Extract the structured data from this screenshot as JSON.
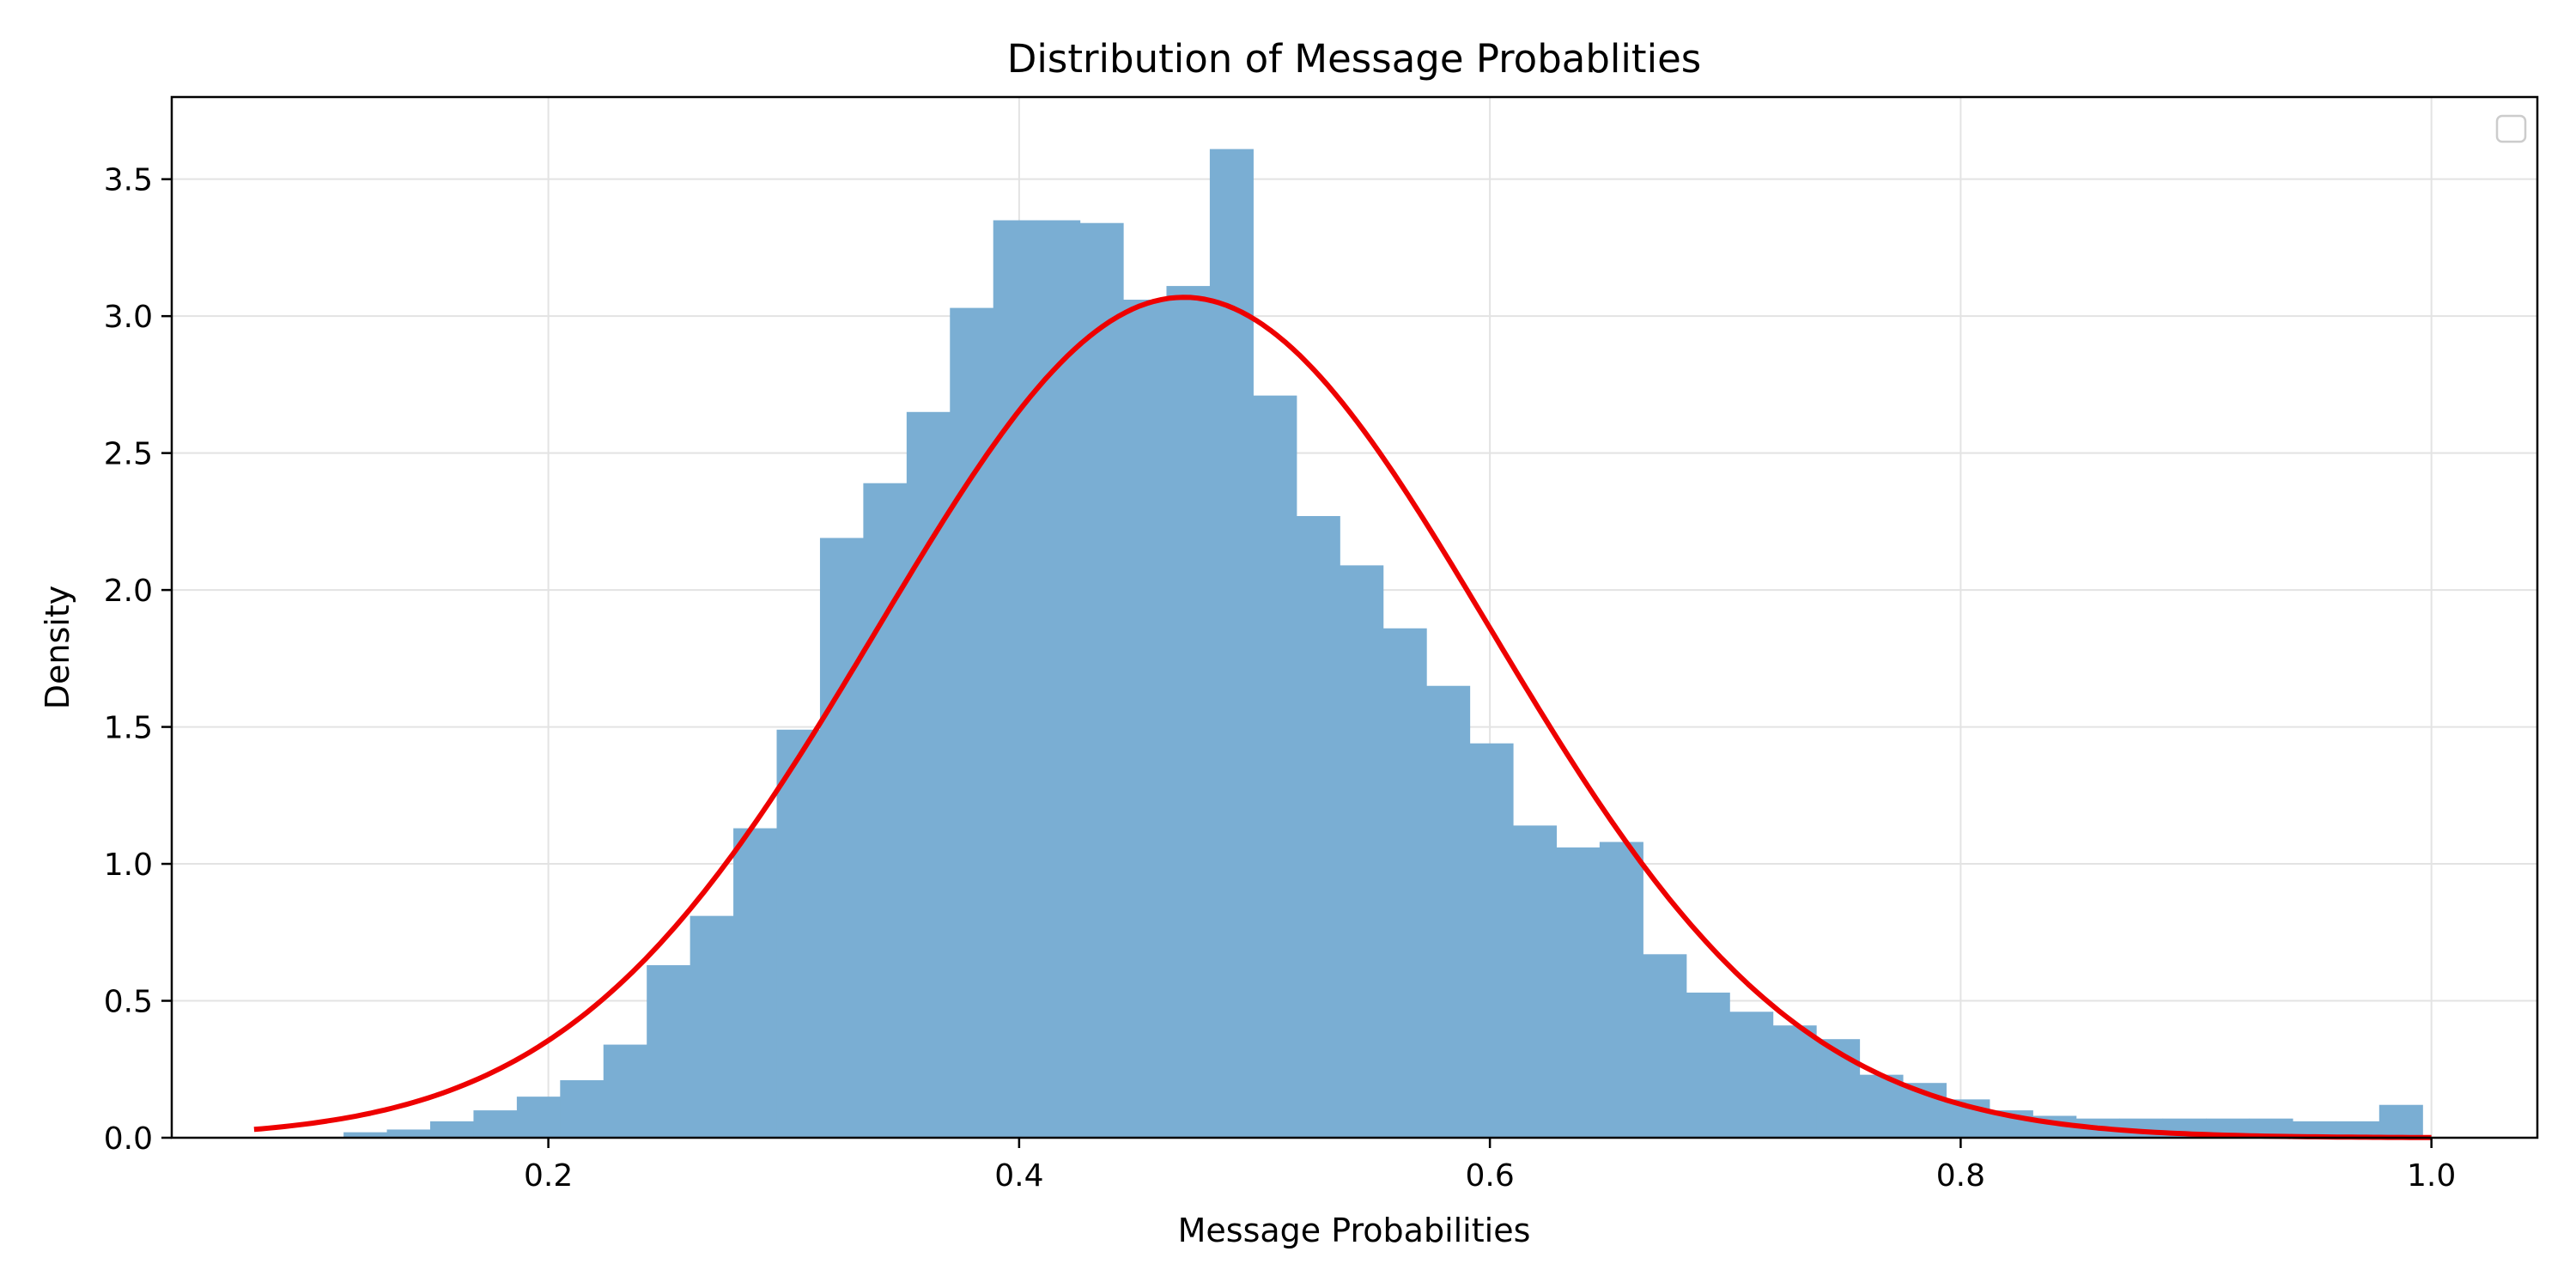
{
  "chart_data": {
    "type": "bar",
    "subtype": "histogram-with-density-curve",
    "title": "Distribution of Message Probablities",
    "xlabel": "Message Probabilities",
    "ylabel": "Density",
    "xlim": [
      0.04,
      1.045
    ],
    "ylim": [
      0,
      3.8
    ],
    "xticks": [
      0.2,
      0.4,
      0.6,
      0.8,
      1.0
    ],
    "xtick_labels": [
      "0.2",
      "0.4",
      "0.6",
      "0.8",
      "1.0"
    ],
    "yticks": [
      0.0,
      0.5,
      1.0,
      1.5,
      2.0,
      2.5,
      3.0,
      3.5
    ],
    "ytick_labels": [
      "0.0",
      "0.5",
      "1.0",
      "1.5",
      "2.0",
      "2.5",
      "3.0",
      "3.5"
    ],
    "grid": true,
    "legend": {
      "location": "upper-right",
      "entries": []
    },
    "histogram": {
      "color": "#7aaed3",
      "bin_edges": [
        0.113,
        0.1314,
        0.1498,
        0.1682,
        0.1866,
        0.205,
        0.2234,
        0.2418,
        0.2602,
        0.2786,
        0.297,
        0.3154,
        0.3338,
        0.3522,
        0.3706,
        0.389,
        0.4074,
        0.4258,
        0.4442,
        0.4626,
        0.481,
        0.4994,
        0.5178,
        0.5362,
        0.5546,
        0.573,
        0.5914,
        0.6098,
        0.6282,
        0.6466,
        0.665,
        0.6834,
        0.7018,
        0.7202,
        0.7386,
        0.757,
        0.7754,
        0.7938,
        0.8122,
        0.8306,
        0.849,
        0.8674,
        0.8858,
        0.9042,
        0.9226,
        0.941,
        0.9594,
        0.9778,
        0.9962
      ],
      "densities": [
        0.02,
        0.03,
        0.06,
        0.1,
        0.15,
        0.21,
        0.34,
        0.63,
        0.81,
        1.13,
        1.49,
        2.19,
        2.39,
        2.65,
        3.03,
        3.35,
        3.35,
        3.34,
        3.06,
        3.11,
        3.61,
        2.71,
        2.27,
        2.09,
        1.86,
        1.65,
        1.44,
        1.14,
        1.06,
        1.08,
        0.67,
        0.53,
        0.46,
        0.41,
        0.36,
        0.23,
        0.2,
        0.14,
        0.1,
        0.08,
        0.07,
        0.07,
        0.07,
        0.07,
        0.07,
        0.06,
        0.06,
        0.12
      ]
    },
    "density_curve": {
      "type": "normal",
      "mean": 0.47,
      "std": 0.13,
      "x_range": [
        0.075,
        1.0
      ],
      "color": "#ee0000"
    }
  }
}
